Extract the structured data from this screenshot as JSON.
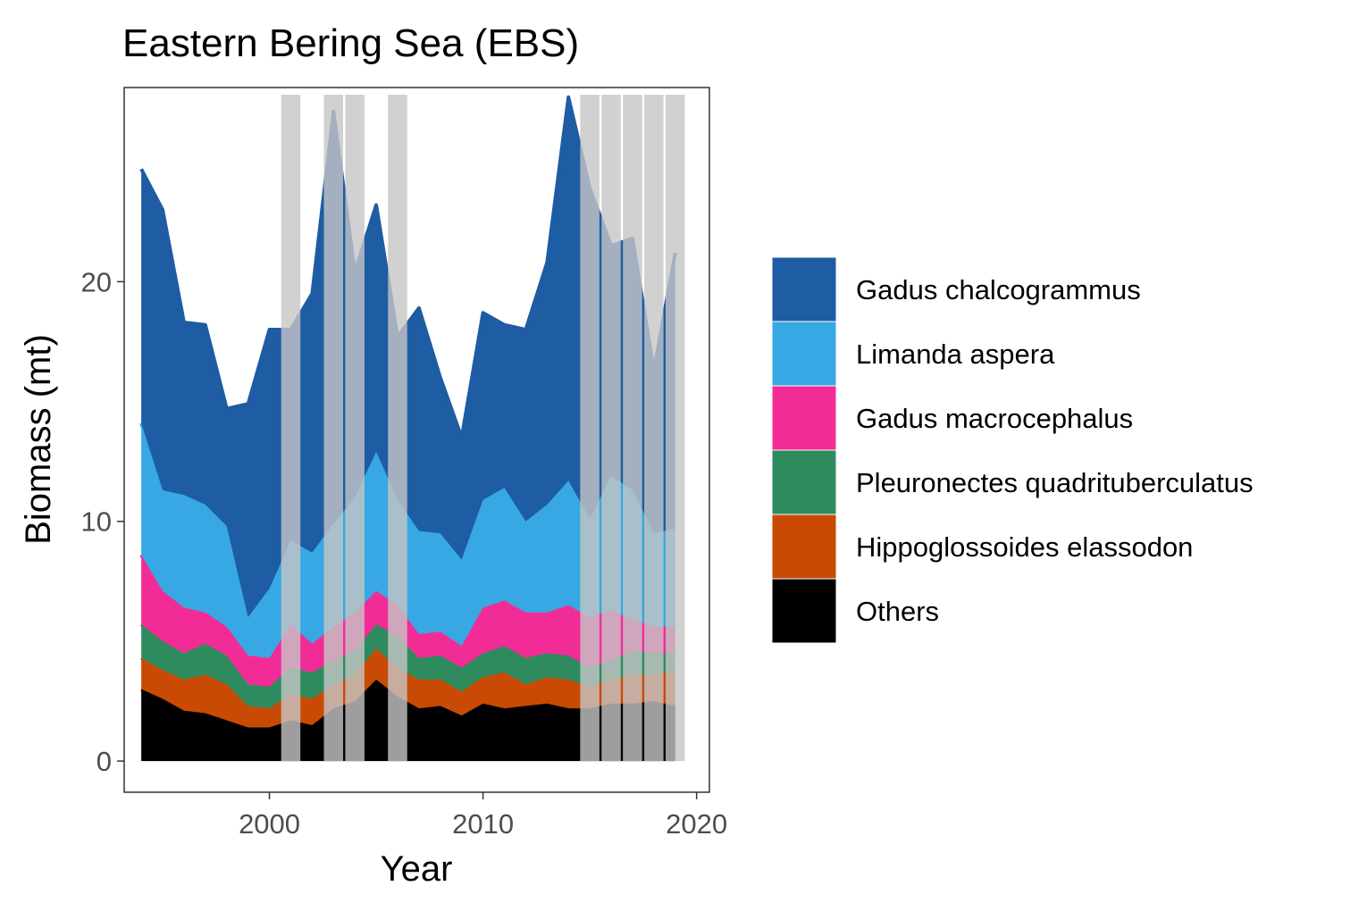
{
  "chart_data": {
    "type": "area",
    "stacked": true,
    "title": "Eastern Bering Sea (EBS)",
    "xlabel": "Year",
    "ylabel": "Biomass (mt)",
    "xlim": [
      1993.2,
      2020.6
    ],
    "ylim": [
      -1.3,
      28.1
    ],
    "x_ticks": [
      2000,
      2010,
      2020
    ],
    "y_ticks": [
      0,
      10,
      20
    ],
    "grid": false,
    "legend_position": "right",
    "years": [
      1994,
      1995,
      1996,
      1997,
      1998,
      1999,
      2000,
      2001,
      2002,
      2003,
      2004,
      2005,
      2006,
      2007,
      2008,
      2009,
      2010,
      2011,
      2012,
      2013,
      2014,
      2015,
      2016,
      2017,
      2018,
      2019
    ],
    "series": [
      {
        "name": "Others",
        "color": "#000000",
        "values": [
          3.0,
          2.6,
          2.1,
          2.0,
          1.7,
          1.4,
          1.4,
          1.7,
          1.5,
          2.2,
          2.5,
          3.4,
          2.7,
          2.2,
          2.3,
          1.9,
          2.4,
          2.2,
          2.3,
          2.4,
          2.2,
          2.2,
          2.4,
          2.4,
          2.5,
          2.3
        ]
      },
      {
        "name": "Hippoglossoides elassodon",
        "color": "#C94A05",
        "values": [
          1.3,
          1.2,
          1.3,
          1.6,
          1.5,
          0.9,
          0.8,
          1.1,
          1.1,
          1.0,
          1.1,
          1.3,
          1.2,
          1.2,
          1.1,
          1.0,
          1.1,
          1.5,
          0.9,
          1.1,
          1.2,
          0.9,
          1.0,
          1.2,
          1.1,
          1.5
        ]
      },
      {
        "name": "Pleuronectes quadrituberculatus",
        "color": "#2E8B5E",
        "values": [
          1.4,
          1.2,
          1.1,
          1.3,
          1.2,
          0.9,
          0.9,
          1.1,
          1.1,
          1.0,
          1.0,
          1.0,
          1.3,
          0.9,
          1.0,
          1.0,
          1.0,
          1.1,
          1.1,
          1.0,
          1.0,
          0.8,
          0.8,
          1.0,
          0.9,
          0.7
        ]
      },
      {
        "name": "Gadus macrocephalus",
        "color": "#F22C96",
        "values": [
          2.9,
          2.1,
          1.9,
          1.3,
          1.2,
          1.2,
          1.2,
          1.8,
          1.2,
          1.4,
          1.6,
          1.4,
          1.3,
          1.0,
          1.0,
          0.9,
          1.9,
          1.9,
          1.9,
          1.7,
          2.1,
          2.1,
          2.1,
          1.3,
          1.1,
          1.1
        ]
      },
      {
        "name": "Limanda aspera",
        "color": "#37A8E3",
        "values": [
          5.5,
          4.2,
          4.7,
          4.5,
          4.2,
          1.6,
          2.9,
          3.5,
          3.8,
          4.3,
          4.8,
          5.8,
          4.4,
          4.3,
          4.1,
          3.6,
          4.5,
          4.7,
          3.8,
          4.5,
          5.2,
          4.1,
          5.6,
          5.4,
          3.9,
          4.1
        ]
      },
      {
        "name": "Gadus chalcogrammus",
        "color": "#1E5CA3",
        "values": [
          10.6,
          11.7,
          7.2,
          7.5,
          4.9,
          8.9,
          10.8,
          8.8,
          10.8,
          17.2,
          9.4,
          10.3,
          6.8,
          9.3,
          6.5,
          5.1,
          7.8,
          6.8,
          8.0,
          10.1,
          16.0,
          13.8,
          9.6,
          10.5,
          6.8,
          11.5
        ]
      }
    ],
    "highlight_years": [
      2001,
      2003,
      2004,
      2006,
      2015,
      2016,
      2017,
      2018,
      2019
    ]
  }
}
